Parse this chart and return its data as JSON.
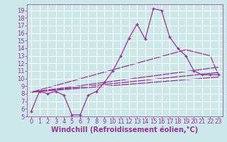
{
  "title": "",
  "xlabel": "Windchill (Refroidissement éolien,°C)",
  "bg_color": "#cce8e8",
  "grid_color": "#ffffff",
  "line_color": "#993399",
  "marker": "+",
  "xlim": [
    -0.5,
    23.5
  ],
  "ylim": [
    5,
    19.8
  ],
  "xticks": [
    0,
    1,
    2,
    3,
    4,
    5,
    6,
    7,
    8,
    9,
    10,
    11,
    12,
    13,
    14,
    15,
    16,
    17,
    18,
    19,
    20,
    21,
    22,
    23
  ],
  "yticks": [
    5,
    6,
    7,
    8,
    9,
    10,
    11,
    12,
    13,
    14,
    15,
    16,
    17,
    18,
    19
  ],
  "main_line_x": [
    0,
    1,
    2,
    3,
    4,
    5,
    6,
    7,
    8,
    9,
    10,
    11,
    12,
    13,
    14,
    15,
    16,
    17,
    18,
    19,
    20,
    21,
    22,
    23
  ],
  "main_line_y": [
    5.7,
    8.3,
    8.0,
    8.3,
    7.8,
    5.2,
    5.2,
    7.8,
    8.3,
    9.5,
    11.0,
    13.0,
    15.3,
    17.2,
    15.2,
    19.2,
    19.0,
    15.5,
    14.0,
    13.0,
    11.0,
    10.5,
    10.5,
    10.5
  ],
  "trend1_x": [
    0,
    23
  ],
  "trend1_y": [
    8.2,
    10.2
  ],
  "trend2_x": [
    0,
    23
  ],
  "trend2_y": [
    8.2,
    10.8
  ],
  "trend3_x": [
    0,
    23
  ],
  "trend3_y": [
    8.2,
    11.5
  ],
  "trend4_x": [
    0,
    19,
    22,
    23
  ],
  "trend4_y": [
    8.2,
    13.8,
    13.0,
    10.5
  ],
  "xlabel_fontsize": 7,
  "tick_fontsize": 6,
  "linewidth": 0.9,
  "markersize": 3.5,
  "markeredgewidth": 1.0
}
